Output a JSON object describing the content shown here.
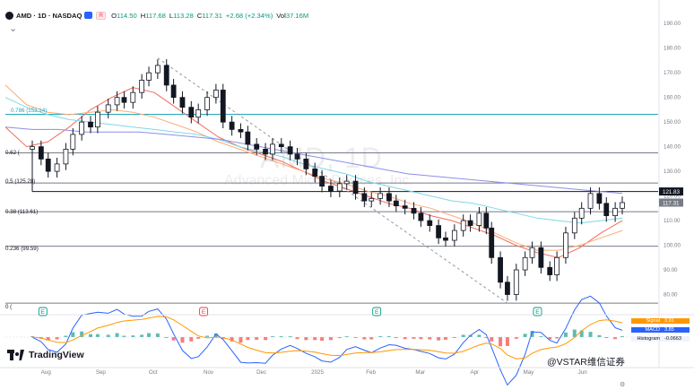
{
  "header": {
    "symbol": "AMD · 1D · NASDAQ",
    "open_label": "O",
    "open": "114.50",
    "high_label": "H",
    "high": "117.68",
    "low_label": "L",
    "low": "113.28",
    "close_label": "C",
    "close": "117.31",
    "change": "+2.68 (+2.34%)",
    "vol_label": "Vol",
    "volume": "37.16M",
    "return_badge": "R"
  },
  "watermark": {
    "ticker": "AMD, 1D",
    "company": "Advanced Micro Devices, Inc."
  },
  "fib_labels": [
    "0.786 (153.14)",
    "0.62 (",
    "0.5 (125.28)",
    "0.38 (113.61)",
    "0.236 (99.59)",
    "0 ("
  ],
  "price_tags": {
    "upper": "121.83",
    "lower": "117.31"
  },
  "earnings_marker": "E",
  "macd_legend": [
    {
      "label": "Signal",
      "value": "3.91",
      "color": "#ff9800"
    },
    {
      "label": "MACD",
      "value": "3.85",
      "color": "#2962ff"
    },
    {
      "label": "Histogram",
      "value": "-0.0663",
      "color": "#ffffff"
    }
  ],
  "branding": {
    "tradingview": "TradingView",
    "source": "@VSTAR维信证券"
  },
  "colors": {
    "up": "#089981",
    "down": "#f23645",
    "candle": "#131722",
    "ma_fast": "#f26b5b",
    "ma_mid": "#ffab74",
    "ma_cyan": "#7fd8e6",
    "ma_slow": "#8c8fe8",
    "fib_top": "#22a7b8",
    "fib_line": "#787b86"
  },
  "chart_data": [
    {
      "type": "candlestick",
      "title": "AMD · 1D · NASDAQ",
      "x_tick_labels": [
        "Aug",
        "Sep",
        "Oct",
        "Nov",
        "Dec",
        "2025",
        "Feb",
        "Mar",
        "Apr",
        "May",
        "Jun"
      ],
      "y_tick_labels": [
        "190.00",
        "180.00",
        "170.00",
        "160.00",
        "150.00",
        "140.00",
        "130.00",
        "120.00",
        "110.00",
        "100.00",
        "90.00",
        "80.00"
      ],
      "ylim": [
        74,
        193
      ],
      "scale": "linear",
      "grid": false,
      "horizontal_levels": [
        {
          "label": "0.786 (153.14)",
          "value": 153.14
        },
        {
          "label": "0.62",
          "value": 137.5
        },
        {
          "label": "0.5 (125.28)",
          "value": 125.28
        },
        {
          "label": "0.38 (113.61)",
          "value": 113.61
        },
        {
          "label": "0.236 (99.59)",
          "value": 99.59
        },
        {
          "label": "0",
          "value": 76.5
        }
      ],
      "price_tags": [
        121.83,
        117.31
      ],
      "close_series": [
        140,
        135,
        130,
        133,
        139,
        145,
        150,
        148,
        154,
        157,
        160,
        158,
        162,
        167,
        170,
        173,
        165,
        160,
        156,
        152,
        155,
        160,
        163,
        150,
        147,
        146,
        141,
        139,
        137,
        141,
        140,
        137,
        135,
        131,
        128,
        124,
        122,
        125,
        126,
        121,
        118,
        119,
        121,
        118,
        116,
        115,
        113,
        110,
        108,
        103,
        102,
        106,
        110,
        108,
        113,
        107,
        95,
        85,
        80,
        90,
        95,
        99,
        91,
        88,
        95,
        105,
        111,
        115,
        121,
        117,
        112,
        115,
        117.31
      ],
      "close_series_x": [
        "2024-07-24",
        "2024-07-29",
        "2024-08-02",
        "2024-08-07",
        "2024-08-12",
        "2024-08-16",
        "2024-08-21",
        "2024-08-26",
        "2024-08-30",
        "2024-09-05",
        "2024-09-10",
        "2024-09-14",
        "2024-09-19",
        "2024-09-24",
        "2024-09-28",
        "2024-10-03",
        "2024-10-08",
        "2024-10-12",
        "2024-10-17",
        "2024-10-22",
        "2024-10-26",
        "2024-10-31",
        "2024-11-05",
        "2024-11-09",
        "2024-11-14",
        "2024-11-19",
        "2024-11-23",
        "2024-11-28",
        "2024-12-03",
        "2024-12-07",
        "2024-12-12",
        "2024-12-17",
        "2024-12-21",
        "2024-12-26",
        "2024-12-31",
        "2025-01-04",
        "2025-01-09",
        "2025-01-14",
        "2025-01-18",
        "2025-01-23",
        "2025-01-28",
        "2025-02-01",
        "2025-02-06",
        "2025-02-11",
        "2025-02-15",
        "2025-02-20",
        "2025-02-25",
        "2025-03-01",
        "2025-03-06",
        "2025-03-11",
        "2025-03-15",
        "2025-03-20",
        "2025-03-25",
        "2025-03-29",
        "2025-04-03",
        "2025-04-07",
        "2025-04-10",
        "2025-04-15",
        "2025-04-19",
        "2025-04-24",
        "2025-04-29",
        "2025-05-03",
        "2025-05-08",
        "2025-05-13",
        "2025-05-17",
        "2025-05-22",
        "2025-05-27",
        "2025-05-31",
        "2025-06-05",
        "2025-06-10",
        "2025-06-14",
        "2025-06-19",
        "2025-06-23"
      ],
      "moving_averages": [
        {
          "role": "fast",
          "color": "#f26b5b",
          "values": [
            148,
            140,
            142,
            148,
            155,
            160,
            164,
            162,
            156,
            150,
            144,
            140,
            137,
            134,
            130,
            126,
            123,
            120,
            117,
            115,
            112,
            110,
            107,
            104,
            100,
            97,
            95,
            99,
            105,
            110
          ]
        },
        {
          "role": "mid",
          "color": "#ffab74",
          "values": [
            165,
            157,
            154,
            153,
            154,
            155,
            154,
            152,
            149,
            146,
            142,
            139,
            136,
            133,
            130,
            127,
            125,
            122,
            120,
            117,
            115,
            112,
            109,
            105,
            101,
            98,
            98,
            100,
            103,
            106
          ]
        },
        {
          "role": "long",
          "color": "#7fd8e6",
          "values": [
            160,
            156,
            153,
            151,
            150,
            149,
            148,
            147,
            146,
            145,
            143,
            140,
            138,
            136,
            133,
            131,
            129,
            126,
            124,
            122,
            120,
            118,
            117,
            115,
            113,
            111,
            110,
            109,
            110,
            111
          ]
        },
        {
          "role": "slow",
          "color": "#8c8fe8",
          "values": [
            148,
            147,
            147,
            146,
            146,
            146,
            145,
            144,
            143,
            141,
            139,
            137,
            135,
            133,
            131,
            129,
            128,
            127,
            126,
            125,
            124,
            123,
            122,
            121
          ]
        }
      ],
      "earnings_markers": [
        "2024-07-30",
        "2024-10-29",
        "2025-02-04",
        "2025-05-06"
      ],
      "macd_panel": {
        "signal": {
          "label": "Signal",
          "value": 3.91,
          "color": "#ff9800"
        },
        "macd": {
          "label": "MACD",
          "value": 3.85,
          "color": "#2962ff"
        },
        "histogram": {
          "label": "Histogram",
          "value": -0.0663
        }
      }
    }
  ]
}
